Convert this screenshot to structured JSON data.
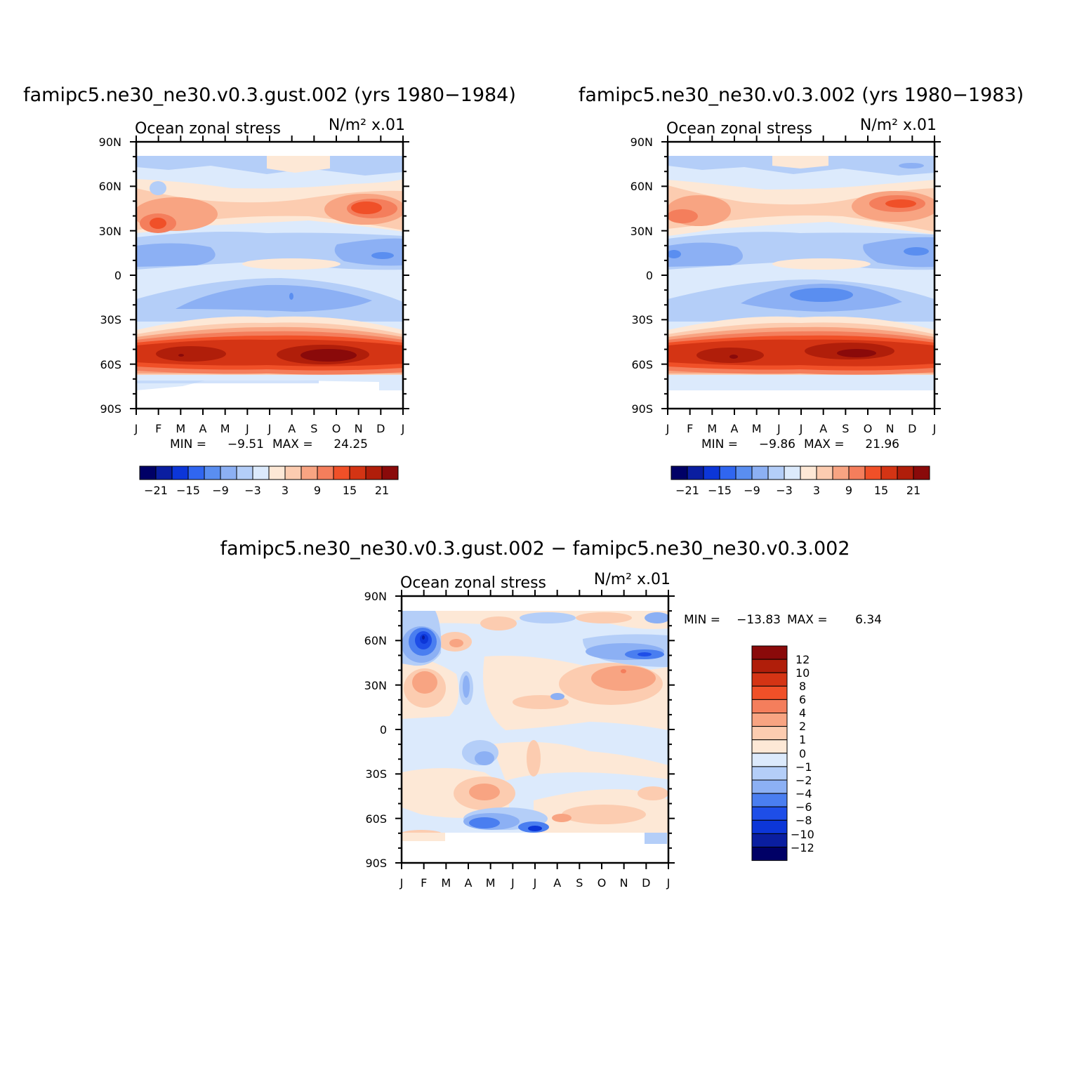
{
  "chart_data": [
    {
      "type": "heatmap",
      "title": "famipc5.ne30_ne30.v0.3.gust.002 (yrs 1980−1984)",
      "left_label": "Ocean zonal stress",
      "units": "N/m² x.01",
      "x_tick_labels": [
        "J",
        "F",
        "M",
        "A",
        "M",
        "J",
        "J",
        "A",
        "S",
        "O",
        "N",
        "D",
        "J"
      ],
      "y_tick_labels": [
        "90N",
        "60N",
        "30N",
        "0",
        "30S",
        "60S",
        "90S"
      ],
      "xlim": [
        0,
        12
      ],
      "ylim": [
        -90,
        90
      ],
      "min_text": "MIN =",
      "min": "−9.51",
      "max_text": "MAX =",
      "max": "24.25",
      "contour_levels": [
        -24,
        -21,
        -18,
        -15,
        -12,
        -9,
        -6,
        -3,
        0,
        3,
        6,
        9,
        12,
        15,
        18,
        21,
        24
      ],
      "colorbar_labels": [
        "−21",
        "−15",
        "−9",
        "−3",
        "3",
        "9",
        "15",
        "21"
      ]
    },
    {
      "type": "heatmap",
      "title": "famipc5.ne30_ne30.v0.3.002 (yrs 1980−1983)",
      "left_label": "Ocean zonal stress",
      "units": "N/m² x.01",
      "x_tick_labels": [
        "J",
        "F",
        "M",
        "A",
        "M",
        "J",
        "J",
        "A",
        "S",
        "O",
        "N",
        "D",
        "J"
      ],
      "y_tick_labels": [
        "90N",
        "60N",
        "30N",
        "0",
        "30S",
        "60S",
        "90S"
      ],
      "xlim": [
        0,
        12
      ],
      "ylim": [
        -90,
        90
      ],
      "min_text": "MIN =",
      "min": "−9.86",
      "max_text": "MAX =",
      "max": "21.96",
      "contour_levels": [
        -24,
        -21,
        -18,
        -15,
        -12,
        -9,
        -6,
        -3,
        0,
        3,
        6,
        9,
        12,
        15,
        18,
        21,
        24
      ],
      "colorbar_labels": [
        "−21",
        "−15",
        "−9",
        "−3",
        "3",
        "9",
        "15",
        "21"
      ]
    },
    {
      "type": "heatmap",
      "title": "famipc5.ne30_ne30.v0.3.gust.002 − famipc5.ne30_ne30.v0.3.002",
      "left_label": "Ocean zonal stress",
      "units": "N/m² x.01",
      "x_tick_labels": [
        "J",
        "F",
        "M",
        "A",
        "M",
        "J",
        "J",
        "A",
        "S",
        "O",
        "N",
        "D",
        "J"
      ],
      "y_tick_labels": [
        "90N",
        "60N",
        "30N",
        "0",
        "30S",
        "60S",
        "90S"
      ],
      "xlim": [
        0,
        12
      ],
      "ylim": [
        -90,
        90
      ],
      "min_text": "MIN =",
      "min": "−13.83",
      "max_text": "MAX =",
      "max": "6.34",
      "contour_levels": [
        -12,
        -10,
        -8,
        -6,
        -4,
        -2,
        -1,
        0,
        1,
        2,
        4,
        6,
        8,
        10,
        12
      ],
      "colorbar_labels": [
        "12",
        "10",
        "8",
        "6",
        "4",
        "2",
        "1",
        "0",
        "−1",
        "−2",
        "−4",
        "−6",
        "−8",
        "−10",
        "−12"
      ]
    }
  ],
  "colors": {
    "absolute_scale": [
      "#000066",
      "#0a1ea0",
      "#0c36d8",
      "#3066f0",
      "#5a8ef0",
      "#8cb0f4",
      "#b4cef8",
      "#dceafc",
      "#fde8d6",
      "#fcccb0",
      "#f8a482",
      "#f47e5c",
      "#f05028",
      "#d43414",
      "#b01e0a",
      "#8a0a0a"
    ],
    "difference_scale": [
      "#8a0a0a",
      "#b01e0a",
      "#d43414",
      "#f05028",
      "#f47e5c",
      "#f8a482",
      "#fcccb0",
      "#fde8d6",
      "#dceafc",
      "#b4cef8",
      "#8cb0f4",
      "#4a7ef0",
      "#1e4ee8",
      "#0c36d8",
      "#0a1ea0",
      "#000066"
    ]
  }
}
